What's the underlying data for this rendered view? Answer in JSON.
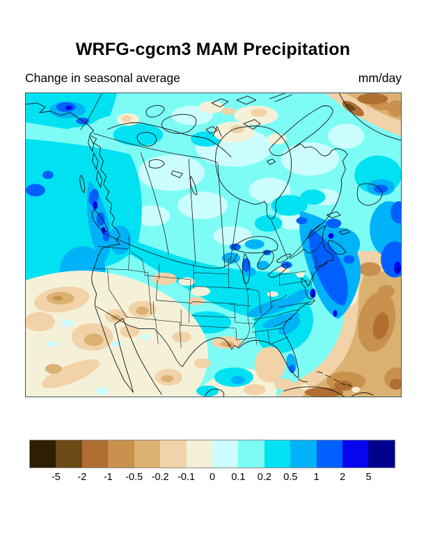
{
  "header": {
    "title": "WRFG-cgcm3 MAM Precipitation",
    "subtitle_left": "Change in seasonal average",
    "subtitle_right": "mm/day"
  },
  "chart_data": {
    "type": "heatmap",
    "title": "WRFG-cgcm3 MAM Precipitation",
    "subtitle": "Change in seasonal average",
    "units": "mm/day",
    "map_region": "North America (regional climate model domain: Canada, United States, Mexico, western Atlantic, eastern Pacific)",
    "colorbar": {
      "orientation": "horizontal",
      "tick_labels": [
        "-5",
        "-2",
        "-1",
        "-0.5",
        "-0.2",
        "-0.1",
        "0",
        "0.1",
        "0.2",
        "0.5",
        "1",
        "2",
        "5"
      ],
      "tick_values": [
        -5,
        -2,
        -1,
        -0.5,
        -0.2,
        -0.1,
        0,
        0.1,
        0.2,
        0.5,
        1,
        2,
        5
      ],
      "colors": [
        "#2e1e04",
        "#6b4a16",
        "#b06e33",
        "#c8914e",
        "#dbb172",
        "#f2d2a8",
        "#f4f1d8",
        "#ccfeff",
        "#7dfcf5",
        "#00e1f2",
        "#00b2f8",
        "#0060ff",
        "#0505ee",
        "#00008e"
      ]
    },
    "pattern_summary": [
      "Increase in precipitation (pale to deep cyan, 0.1 to 1 mm/day) over most of Canada, the Pacific Northwest, the upper Midwest, the Northeast and the Gulf of Alaska",
      "Strongest increases (blue to navy, 1 to >5 mm/day) along the British Columbia coast and offshore of the U.S. east coast near Cape Hatteras",
      "Decrease (cream to tan, -0.1 to -1 mm/day) over the Southwest U.S., Mexico, Texas, the central Gulf coast and the subtropical eastern Pacific",
      "Strongest decreases (brown, -1 to -2 mm/day and below) over the subtropical western Atlantic, around Cuba and along the Greenland coast"
    ]
  }
}
